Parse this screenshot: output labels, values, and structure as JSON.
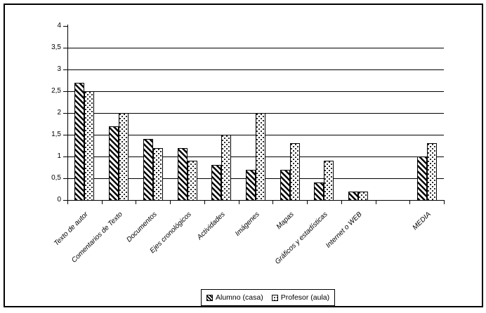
{
  "figure": {
    "background_color": "#ffffff",
    "border_color": "#000000",
    "text_color": "#000000"
  },
  "chart_data": {
    "type": "bar",
    "categories": [
      "Texto de autor",
      "Comentarios de Texto",
      "Documentos",
      "Ejes cronológicos",
      "Actividades",
      "Imágenes",
      "Mapas",
      "Gráficos y estadísticas",
      "Internet o WEB",
      "",
      "MEDIA"
    ],
    "series": [
      {
        "name": "Alumno (casa)",
        "pattern": "diagonal-hatch",
        "values": [
          2.7,
          1.7,
          1.4,
          1.2,
          0.8,
          0.7,
          0.7,
          0.4,
          0.2,
          null,
          1.0
        ]
      },
      {
        "name": "Profesor (aula)",
        "pattern": "dots",
        "values": [
          2.5,
          2.0,
          1.2,
          0.9,
          1.5,
          2.0,
          1.3,
          0.9,
          0.2,
          null,
          1.3
        ]
      }
    ],
    "ylim": [
      0,
      4
    ],
    "y_ticks": [
      {
        "value": 4,
        "label": "4"
      },
      {
        "value": 3.5,
        "label": "3,5"
      },
      {
        "value": 3,
        "label": "3"
      },
      {
        "value": 2.5,
        "label": "2,5"
      },
      {
        "value": 2,
        "label": "2"
      },
      {
        "value": 1.5,
        "label": "1,5"
      },
      {
        "value": 1,
        "label": "1"
      },
      {
        "value": 0.5,
        "label": "0,5"
      },
      {
        "value": 0,
        "label": "0"
      }
    ],
    "gridline_values": [
      0.5,
      1,
      1.5,
      2,
      2.5,
      3,
      3.5
    ],
    "grid": true,
    "decimal_separator": ",",
    "legend_position": "bottom",
    "bar_fill": "#ffffff",
    "bar_border": "#000000"
  }
}
